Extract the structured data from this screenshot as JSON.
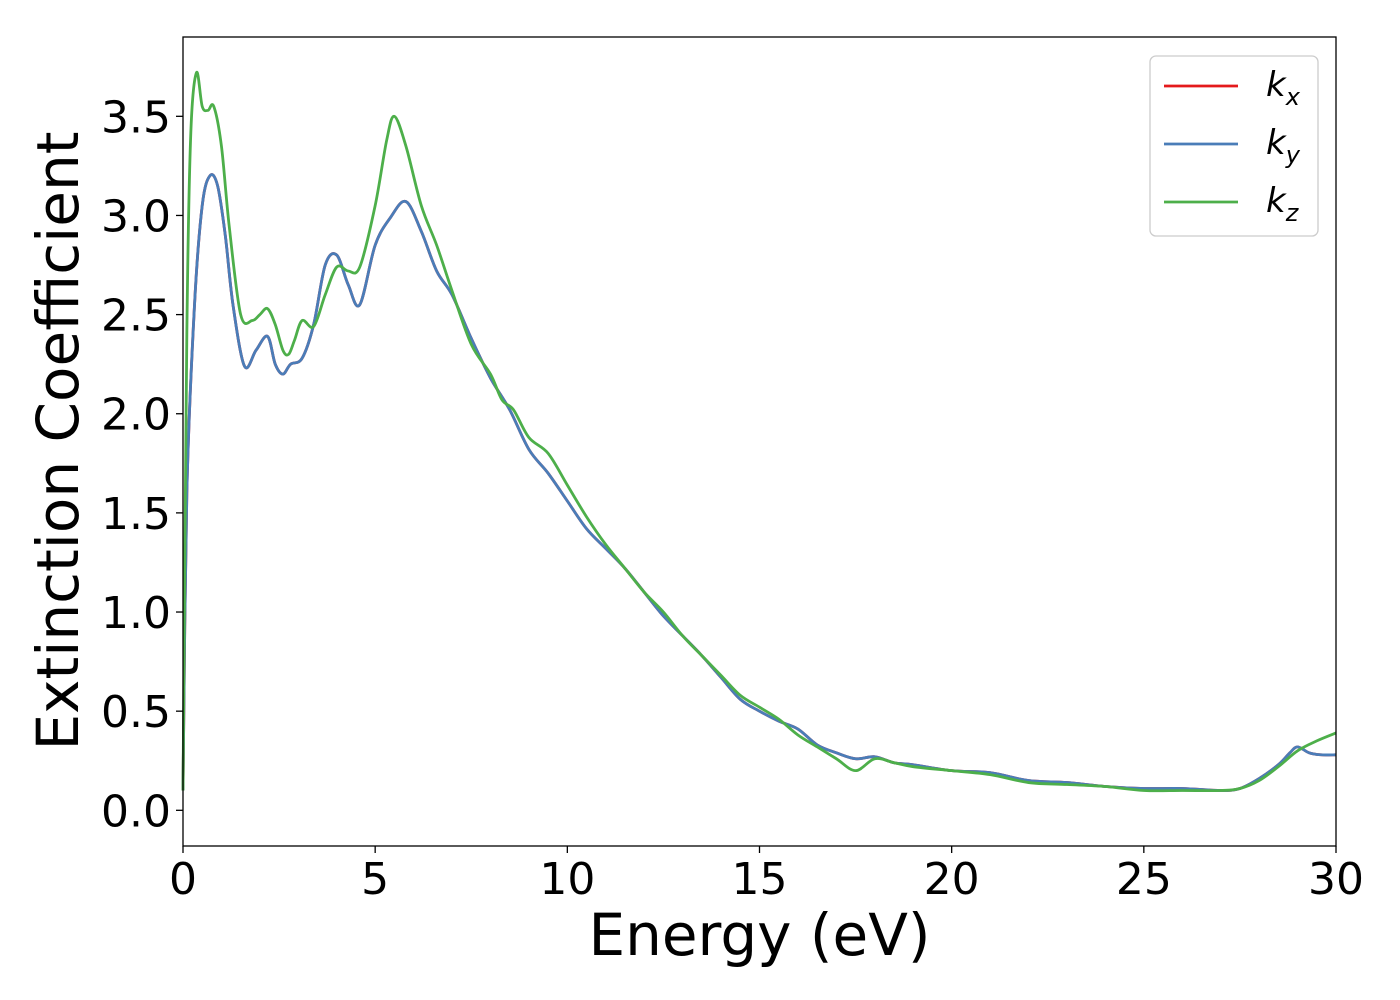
{
  "chart_data": {
    "type": "line",
    "title": "",
    "xlabel": "Energy (eV)",
    "ylabel": "Extinction Coefficient",
    "xlim": [
      0,
      30
    ],
    "ylim": [
      -0.18,
      3.9
    ],
    "xticks": [
      0,
      5,
      10,
      15,
      20,
      25,
      30
    ],
    "yticks": [
      0.0,
      0.5,
      1.0,
      1.5,
      2.0,
      2.5,
      3.0,
      3.5
    ],
    "xtick_labels": [
      "0",
      "5",
      "10",
      "15",
      "20",
      "25",
      "30"
    ],
    "ytick_labels": [
      "0.0",
      "0.5",
      "1.0",
      "1.5",
      "2.0",
      "2.5",
      "3.0",
      "3.5"
    ],
    "grid": false,
    "legend_position": "top-right",
    "colors": {
      "kx": "#e41a1c",
      "ky": "#4a7db8",
      "kz": "#4daf4a"
    },
    "series": [
      {
        "name": "kx",
        "label_base": "k",
        "label_sub": "x",
        "x": [
          0,
          0.1,
          0.3,
          0.5,
          0.7,
          0.9,
          1.1,
          1.3,
          1.6,
          1.9,
          2.2,
          2.4,
          2.6,
          2.8,
          3.1,
          3.4,
          3.7,
          4.0,
          4.3,
          4.6,
          5.0,
          5.4,
          5.8,
          6.2,
          6.6,
          7.0,
          7.5,
          8.0,
          8.5,
          9.0,
          9.5,
          10.0,
          10.5,
          11.0,
          11.5,
          12.0,
          12.5,
          13.0,
          13.5,
          14.0,
          14.5,
          15.0,
          15.5,
          16.0,
          16.5,
          17.0,
          17.5,
          18.0,
          18.5,
          19.0,
          20.0,
          21.0,
          22.0,
          23.0,
          24.0,
          25.0,
          26.0,
          27.0,
          27.5,
          28.0,
          28.5,
          28.8,
          29.0,
          29.3,
          29.6,
          30.0
        ],
        "y": [
          0.1,
          1.6,
          2.55,
          3.05,
          3.2,
          3.15,
          2.9,
          2.55,
          2.24,
          2.32,
          2.39,
          2.25,
          2.2,
          2.25,
          2.28,
          2.45,
          2.75,
          2.8,
          2.65,
          2.55,
          2.85,
          2.99,
          3.07,
          2.92,
          2.72,
          2.6,
          2.38,
          2.18,
          2.02,
          1.82,
          1.7,
          1.56,
          1.42,
          1.32,
          1.22,
          1.1,
          0.98,
          0.88,
          0.78,
          0.67,
          0.56,
          0.5,
          0.45,
          0.41,
          0.33,
          0.29,
          0.26,
          0.27,
          0.24,
          0.23,
          0.2,
          0.19,
          0.15,
          0.14,
          0.12,
          0.11,
          0.11,
          0.1,
          0.11,
          0.16,
          0.23,
          0.29,
          0.32,
          0.29,
          0.28,
          0.28
        ]
      },
      {
        "name": "ky",
        "label_base": "k",
        "label_sub": "y",
        "x": [
          0,
          0.1,
          0.3,
          0.5,
          0.7,
          0.9,
          1.1,
          1.3,
          1.6,
          1.9,
          2.2,
          2.4,
          2.6,
          2.8,
          3.1,
          3.4,
          3.7,
          4.0,
          4.3,
          4.6,
          5.0,
          5.4,
          5.8,
          6.2,
          6.6,
          7.0,
          7.5,
          8.0,
          8.5,
          9.0,
          9.5,
          10.0,
          10.5,
          11.0,
          11.5,
          12.0,
          12.5,
          13.0,
          13.5,
          14.0,
          14.5,
          15.0,
          15.5,
          16.0,
          16.5,
          17.0,
          17.5,
          18.0,
          18.5,
          19.0,
          20.0,
          21.0,
          22.0,
          23.0,
          24.0,
          25.0,
          26.0,
          27.0,
          27.5,
          28.0,
          28.5,
          28.8,
          29.0,
          29.3,
          29.6,
          30.0
        ],
        "y": [
          0.1,
          1.6,
          2.55,
          3.05,
          3.2,
          3.15,
          2.9,
          2.55,
          2.24,
          2.32,
          2.39,
          2.25,
          2.2,
          2.25,
          2.28,
          2.45,
          2.75,
          2.8,
          2.65,
          2.55,
          2.85,
          2.99,
          3.07,
          2.92,
          2.72,
          2.6,
          2.38,
          2.18,
          2.02,
          1.82,
          1.7,
          1.56,
          1.42,
          1.32,
          1.22,
          1.1,
          0.98,
          0.88,
          0.78,
          0.67,
          0.56,
          0.5,
          0.45,
          0.41,
          0.33,
          0.29,
          0.26,
          0.27,
          0.24,
          0.23,
          0.2,
          0.19,
          0.15,
          0.14,
          0.12,
          0.11,
          0.11,
          0.1,
          0.11,
          0.16,
          0.23,
          0.29,
          0.32,
          0.29,
          0.28,
          0.28
        ]
      },
      {
        "name": "kz",
        "label_base": "k",
        "label_sub": "z",
        "x": [
          0,
          0.1,
          0.2,
          0.35,
          0.5,
          0.65,
          0.8,
          1.0,
          1.2,
          1.5,
          1.8,
          2.0,
          2.2,
          2.4,
          2.6,
          2.75,
          2.9,
          3.1,
          3.4,
          3.7,
          4.0,
          4.3,
          4.6,
          5.0,
          5.3,
          5.5,
          5.8,
          6.2,
          6.6,
          7.0,
          7.5,
          8.0,
          8.3,
          8.6,
          9.0,
          9.5,
          10.0,
          10.5,
          11.0,
          11.5,
          12.0,
          12.5,
          13.0,
          13.5,
          14.0,
          14.5,
          15.0,
          15.5,
          16.0,
          16.5,
          17.0,
          17.5,
          18.0,
          18.5,
          19.0,
          20.0,
          21.0,
          22.0,
          23.0,
          24.0,
          25.0,
          26.0,
          27.0,
          27.5,
          28.0,
          28.5,
          29.0,
          29.5,
          30.0
        ],
        "y": [
          0.1,
          2.4,
          3.4,
          3.72,
          3.55,
          3.53,
          3.55,
          3.35,
          2.95,
          2.5,
          2.47,
          2.5,
          2.53,
          2.45,
          2.32,
          2.3,
          2.37,
          2.47,
          2.44,
          2.6,
          2.74,
          2.72,
          2.74,
          3.05,
          3.38,
          3.5,
          3.35,
          3.05,
          2.85,
          2.62,
          2.35,
          2.2,
          2.07,
          2.02,
          1.88,
          1.8,
          1.64,
          1.48,
          1.34,
          1.22,
          1.1,
          1.0,
          0.88,
          0.78,
          0.68,
          0.58,
          0.52,
          0.46,
          0.38,
          0.32,
          0.26,
          0.2,
          0.26,
          0.24,
          0.22,
          0.2,
          0.18,
          0.14,
          0.13,
          0.12,
          0.1,
          0.1,
          0.1,
          0.11,
          0.15,
          0.22,
          0.3,
          0.35,
          0.39
        ]
      }
    ]
  }
}
